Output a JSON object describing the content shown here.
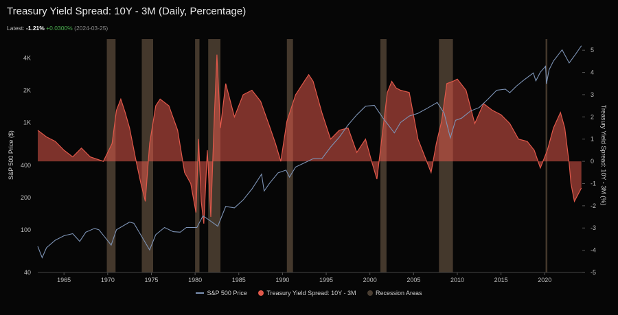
{
  "header": {
    "title": "Treasury Yield Spread: 10Y - 3M (Daily, Percentage)",
    "latest_label": "Latest:",
    "latest_value": "-1.21%",
    "latest_change": "+0.0300%",
    "latest_date": "(2024-03-25)"
  },
  "chart_data": {
    "type": "line",
    "x_ticks": [
      "1965",
      "1970",
      "1975",
      "1980",
      "1985",
      "1990",
      "1995",
      "2000",
      "2005",
      "2010",
      "2015",
      "2020"
    ],
    "xlim": [
      1962,
      2024.3
    ],
    "left_axis": {
      "label": "S&P 500 Price ($)",
      "scale": "log",
      "ylim": [
        40,
        6000
      ],
      "ticks": [
        "40",
        "100",
        "200",
        "400",
        "1K",
        "2K",
        "4K"
      ]
    },
    "right_axis": {
      "label": "Treasury Yield Spread: 10Y - 3M (%)",
      "ylim": [
        -5,
        5.5
      ],
      "ticks": [
        "5",
        "4",
        "3",
        "2",
        "1",
        "0",
        "-1",
        "-2",
        "-3",
        "-4",
        "-5"
      ]
    },
    "legend": [
      "S&P 500 Price",
      "Treasury Yield Spread: 10Y - 3M",
      "Recession Areas"
    ],
    "colors": {
      "sp500": "#7d93b5",
      "spread": "#e0584a",
      "recession": "#5a4a3a"
    },
    "recessions": [
      [
        1969.9,
        1970.9
      ],
      [
        1973.9,
        1975.2
      ],
      [
        1980.0,
        1980.5
      ],
      [
        1981.5,
        1982.9
      ],
      [
        1990.5,
        1991.2
      ],
      [
        2001.2,
        2001.9
      ],
      [
        2007.9,
        2009.5
      ],
      [
        2020.1,
        2020.3
      ]
    ],
    "series": [
      {
        "name": "S&P 500 Price",
        "axis": "left",
        "x": [
          1962.0,
          1962.5,
          1963,
          1964,
          1965,
          1966,
          1966.8,
          1967.5,
          1968.5,
          1969,
          1970.4,
          1971,
          1972.5,
          1973,
          1974.8,
          1975.5,
          1976.5,
          1977.5,
          1978.3,
          1979,
          1980.2,
          1980.9,
          1981.5,
          1982.6,
          1983.5,
          1984.5,
          1985.5,
          1986.5,
          1987.6,
          1987.9,
          1988.5,
          1989.5,
          1990.4,
          1990.8,
          1991.5,
          1992.5,
          1993.5,
          1994.5,
          1995.5,
          1996.5,
          1997.5,
          1998.5,
          1999.5,
          2000.5,
          2001.5,
          2002.8,
          2003.5,
          2004.5,
          2005.5,
          2006.5,
          2007.7,
          2008.5,
          2009.2,
          2009.8,
          2010.5,
          2011.5,
          2012.5,
          2013.5,
          2014.5,
          2015.5,
          2016.0,
          2016.8,
          2017.5,
          2018.7,
          2018.99,
          2019.5,
          2020.1,
          2020.2,
          2020.5,
          2021.0,
          2021.99,
          2022.8,
          2023.5,
          2024.2
        ],
        "y": [
          70,
          55,
          68,
          80,
          88,
          92,
          78,
          95,
          103,
          100,
          72,
          100,
          118,
          115,
          65,
          90,
          105,
          96,
          95,
          105,
          105,
          135,
          125,
          108,
          165,
          160,
          190,
          240,
          330,
          230,
          270,
          340,
          360,
          310,
          385,
          420,
          460,
          460,
          590,
          730,
          950,
          1180,
          1420,
          1450,
          1100,
          800,
          1000,
          1150,
          1220,
          1350,
          1540,
          1220,
          720,
          1050,
          1100,
          1280,
          1380,
          1650,
          2000,
          2050,
          1900,
          2200,
          2450,
          2900,
          2450,
          2950,
          3350,
          2300,
          3100,
          3750,
          4770,
          3600,
          4300,
          5200
        ]
      },
      {
        "name": "Treasury Yield Spread: 10Y - 3M",
        "axis": "right",
        "x": [
          1962,
          1963,
          1964,
          1965,
          1966,
          1967,
          1968,
          1969.5,
          1970.5,
          1971,
          1971.5,
          1972,
          1972.5,
          1973.2,
          1973.8,
          1974.3,
          1974.8,
          1975.5,
          1976,
          1977,
          1978,
          1978.8,
          1979.5,
          1980.1,
          1980.4,
          1980.7,
          1981.0,
          1981.4,
          1981.8,
          1982.2,
          1982.5,
          1982.9,
          1983.5,
          1984.5,
          1985.5,
          1986.5,
          1987.5,
          1988.5,
          1989.2,
          1989.8,
          1990.5,
          1991.5,
          1992.5,
          1993.0,
          1993.5,
          1994.5,
          1995.5,
          1996.5,
          1997.5,
          1998.5,
          1999.5,
          2000.2,
          2000.8,
          2001.5,
          2002.0,
          2002.5,
          2003.0,
          2003.5,
          2004.5,
          2005.5,
          2006.5,
          2007.0,
          2007.6,
          2008.2,
          2008.8,
          2009.5,
          2010.0,
          2011,
          2012,
          2013,
          2014,
          2015,
          2016,
          2017,
          2018,
          2018.8,
          2019.5,
          2020.3,
          2021.0,
          2021.8,
          2022.3,
          2022.8,
          2023.0,
          2023.4,
          2023.8,
          2024.2
        ],
        "y": [
          1.4,
          1.1,
          0.9,
          0.5,
          0.2,
          0.6,
          0.2,
          0.0,
          0.8,
          2.3,
          2.8,
          2.2,
          1.5,
          0.1,
          -1.0,
          -1.8,
          0.8,
          2.5,
          2.8,
          2.5,
          1.4,
          -0.5,
          -1.0,
          -2.3,
          1.0,
          -1.8,
          -2.8,
          0.5,
          -2.5,
          2.0,
          4.8,
          1.5,
          3.5,
          2.0,
          3.0,
          3.2,
          2.7,
          1.6,
          0.8,
          0.0,
          1.8,
          3.0,
          3.6,
          3.9,
          3.6,
          2.2,
          1.0,
          1.4,
          1.5,
          0.4,
          1.0,
          0.0,
          -0.8,
          1.5,
          3.1,
          3.6,
          3.3,
          3.2,
          3.1,
          1.0,
          0.0,
          -0.5,
          0.8,
          1.8,
          3.5,
          3.6,
          3.7,
          3.2,
          1.7,
          2.6,
          2.3,
          2.1,
          1.7,
          1.0,
          0.9,
          0.5,
          -0.3,
          0.5,
          1.5,
          2.2,
          1.5,
          -0.1,
          -1.0,
          -1.8,
          -1.5,
          -1.2
        ]
      }
    ]
  }
}
